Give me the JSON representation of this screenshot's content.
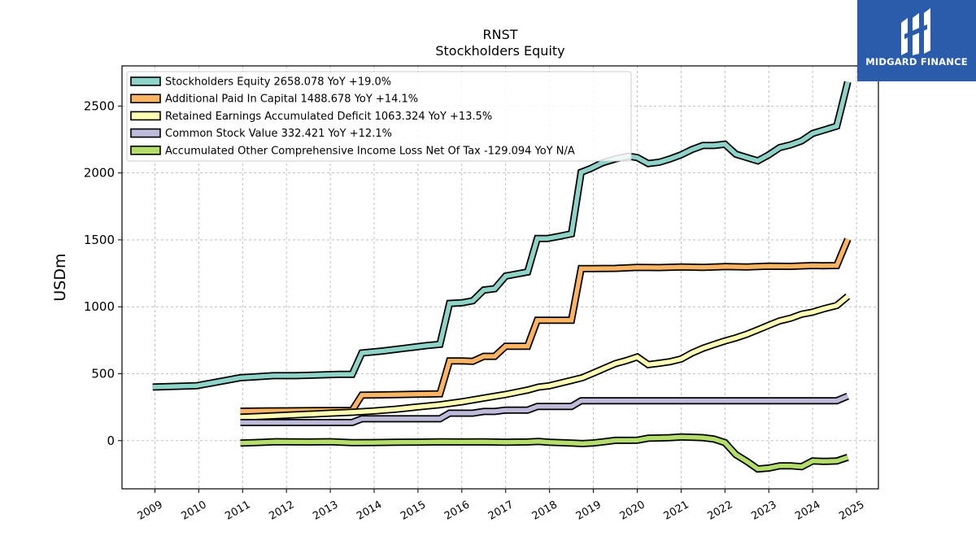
{
  "chart_data": {
    "type": "line",
    "title": "RNST",
    "subtitle": "Stockholders  Equity",
    "ylabel": "USDm",
    "xlabel": "",
    "ylim": [
      -360,
      2800
    ],
    "xlim": [
      2008.25,
      2025.5
    ],
    "yticks": [
      0,
      500,
      1000,
      1500,
      2000,
      2500
    ],
    "xticks": [
      "2009",
      "2010",
      "2011",
      "2012",
      "2013",
      "2014",
      "2015",
      "2016",
      "2017",
      "2018",
      "2019",
      "2020",
      "2021",
      "2022",
      "2023",
      "2024",
      "2025"
    ],
    "grid": true,
    "legend_position": "top-left",
    "series": [
      {
        "name": "Stockholders Equity  2658.078 YoY +19.0%",
        "color": "#8dd3c7",
        "points": [
          [
            2008.95,
            400
          ],
          [
            2009.95,
            410
          ],
          [
            2010.95,
            470
          ],
          [
            2011.2,
            475
          ],
          [
            2011.7,
            485
          ],
          [
            2012.2,
            485
          ],
          [
            2012.7,
            490
          ],
          [
            2013.2,
            495
          ],
          [
            2013.5,
            495
          ],
          [
            2013.72,
            655
          ],
          [
            2014.2,
            670
          ],
          [
            2014.7,
            690
          ],
          [
            2015.2,
            710
          ],
          [
            2015.5,
            720
          ],
          [
            2015.72,
            1025
          ],
          [
            2016.0,
            1030
          ],
          [
            2016.25,
            1045
          ],
          [
            2016.5,
            1125
          ],
          [
            2016.75,
            1135
          ],
          [
            2017.0,
            1230
          ],
          [
            2017.25,
            1245
          ],
          [
            2017.5,
            1260
          ],
          [
            2017.72,
            1510
          ],
          [
            2017.95,
            1510
          ],
          [
            2018.2,
            1525
          ],
          [
            2018.5,
            1545
          ],
          [
            2018.72,
            2005
          ],
          [
            2018.95,
            2035
          ],
          [
            2019.2,
            2075
          ],
          [
            2019.5,
            2105
          ],
          [
            2019.8,
            2125
          ],
          [
            2020.0,
            2115
          ],
          [
            2020.25,
            2070
          ],
          [
            2020.5,
            2080
          ],
          [
            2020.75,
            2105
          ],
          [
            2021.0,
            2135
          ],
          [
            2021.25,
            2175
          ],
          [
            2021.5,
            2205
          ],
          [
            2021.75,
            2205
          ],
          [
            2022.0,
            2215
          ],
          [
            2022.25,
            2140
          ],
          [
            2022.5,
            2115
          ],
          [
            2022.75,
            2090
          ],
          [
            2023.0,
            2135
          ],
          [
            2023.25,
            2190
          ],
          [
            2023.5,
            2210
          ],
          [
            2023.75,
            2240
          ],
          [
            2024.0,
            2295
          ],
          [
            2024.25,
            2320
          ],
          [
            2024.55,
            2350
          ],
          [
            2024.8,
            2680
          ]
        ]
      },
      {
        "name": "Additional Paid In Capital  1488.678 YoY +14.1%",
        "color": "#fdb462",
        "points": [
          [
            2010.95,
            220
          ],
          [
            2011.5,
            222
          ],
          [
            2012.0,
            223
          ],
          [
            2012.5,
            224
          ],
          [
            2013.0,
            225
          ],
          [
            2013.5,
            226
          ],
          [
            2013.72,
            340
          ],
          [
            2014.2,
            342
          ],
          [
            2014.7,
            345
          ],
          [
            2015.2,
            348
          ],
          [
            2015.5,
            350
          ],
          [
            2015.72,
            595
          ],
          [
            2016.0,
            595
          ],
          [
            2016.25,
            593
          ],
          [
            2016.5,
            630
          ],
          [
            2016.75,
            630
          ],
          [
            2017.0,
            705
          ],
          [
            2017.25,
            705
          ],
          [
            2017.5,
            705
          ],
          [
            2017.72,
            900
          ],
          [
            2017.95,
            900
          ],
          [
            2018.2,
            900
          ],
          [
            2018.5,
            900
          ],
          [
            2018.72,
            1285
          ],
          [
            2018.95,
            1285
          ],
          [
            2019.5,
            1287
          ],
          [
            2020.0,
            1295
          ],
          [
            2020.5,
            1293
          ],
          [
            2021.0,
            1297
          ],
          [
            2021.5,
            1295
          ],
          [
            2022.0,
            1300
          ],
          [
            2022.5,
            1298
          ],
          [
            2023.0,
            1303
          ],
          [
            2023.5,
            1302
          ],
          [
            2024.0,
            1308
          ],
          [
            2024.25,
            1307
          ],
          [
            2024.55,
            1308
          ],
          [
            2024.8,
            1505
          ]
        ]
      },
      {
        "name": "Retained Earnings Accumulated Deficit  1063.324 YoY +13.5%",
        "color": "#ffffb3",
        "points": [
          [
            2010.95,
            175
          ],
          [
            2011.5,
            182
          ],
          [
            2012.0,
            190
          ],
          [
            2012.5,
            197
          ],
          [
            2013.0,
            205
          ],
          [
            2013.5,
            212
          ],
          [
            2014.0,
            222
          ],
          [
            2014.5,
            235
          ],
          [
            2015.0,
            252
          ],
          [
            2015.5,
            268
          ],
          [
            2016.0,
            290
          ],
          [
            2016.5,
            318
          ],
          [
            2017.0,
            345
          ],
          [
            2017.5,
            378
          ],
          [
            2017.75,
            400
          ],
          [
            2018.0,
            410
          ],
          [
            2018.5,
            450
          ],
          [
            2018.75,
            470
          ],
          [
            2019.0,
            505
          ],
          [
            2019.25,
            540
          ],
          [
            2019.5,
            575
          ],
          [
            2019.75,
            598
          ],
          [
            2020.0,
            625
          ],
          [
            2020.25,
            568
          ],
          [
            2020.5,
            578
          ],
          [
            2020.75,
            590
          ],
          [
            2021.0,
            610
          ],
          [
            2021.25,
            655
          ],
          [
            2021.5,
            690
          ],
          [
            2021.75,
            718
          ],
          [
            2022.0,
            745
          ],
          [
            2022.25,
            768
          ],
          [
            2022.5,
            795
          ],
          [
            2022.75,
            828
          ],
          [
            2023.0,
            862
          ],
          [
            2023.25,
            895
          ],
          [
            2023.5,
            915
          ],
          [
            2023.75,
            945
          ],
          [
            2024.0,
            960
          ],
          [
            2024.25,
            985
          ],
          [
            2024.55,
            1010
          ],
          [
            2024.8,
            1078
          ]
        ]
      },
      {
        "name": "Common Stock Value  332.421 YoY +12.1%",
        "color": "#bebada",
        "points": [
          [
            2010.95,
            135
          ],
          [
            2011.5,
            135
          ],
          [
            2012.0,
            135
          ],
          [
            2012.5,
            135
          ],
          [
            2013.0,
            135
          ],
          [
            2013.5,
            135
          ],
          [
            2013.72,
            163
          ],
          [
            2014.2,
            163
          ],
          [
            2014.7,
            163
          ],
          [
            2015.2,
            163
          ],
          [
            2015.5,
            163
          ],
          [
            2015.72,
            205
          ],
          [
            2016.0,
            205
          ],
          [
            2016.25,
            205
          ],
          [
            2016.5,
            218
          ],
          [
            2016.75,
            218
          ],
          [
            2017.0,
            228
          ],
          [
            2017.25,
            228
          ],
          [
            2017.5,
            228
          ],
          [
            2017.72,
            255
          ],
          [
            2017.95,
            255
          ],
          [
            2018.2,
            255
          ],
          [
            2018.5,
            255
          ],
          [
            2018.72,
            298
          ],
          [
            2019.0,
            298
          ],
          [
            2019.5,
            298
          ],
          [
            2020.0,
            298
          ],
          [
            2020.5,
            298
          ],
          [
            2021.0,
            298
          ],
          [
            2021.5,
            298
          ],
          [
            2022.0,
            298
          ],
          [
            2022.5,
            298
          ],
          [
            2023.0,
            298
          ],
          [
            2023.5,
            298
          ],
          [
            2024.0,
            298
          ],
          [
            2024.25,
            298
          ],
          [
            2024.55,
            298
          ],
          [
            2024.8,
            332
          ]
        ]
      },
      {
        "name": "Accumulated Other Comprehensive Income Loss Net Of Tax  -129.094 YoY N/A",
        "color": "#b3de69",
        "points": [
          [
            2010.95,
            -18
          ],
          [
            2011.25,
            -15
          ],
          [
            2011.5,
            -12
          ],
          [
            2011.75,
            -8
          ],
          [
            2012.0,
            -9
          ],
          [
            2012.5,
            -10
          ],
          [
            2013.0,
            -8
          ],
          [
            2013.5,
            -15
          ],
          [
            2014.0,
            -14
          ],
          [
            2014.5,
            -12
          ],
          [
            2015.0,
            -11
          ],
          [
            2015.5,
            -9
          ],
          [
            2016.0,
            -10
          ],
          [
            2016.5,
            -9
          ],
          [
            2017.0,
            -12
          ],
          [
            2017.5,
            -10
          ],
          [
            2017.75,
            -6
          ],
          [
            2018.0,
            -12
          ],
          [
            2018.5,
            -18
          ],
          [
            2018.75,
            -22
          ],
          [
            2019.0,
            -17
          ],
          [
            2019.25,
            -8
          ],
          [
            2019.5,
            2
          ],
          [
            2019.75,
            2
          ],
          [
            2020.0,
            3
          ],
          [
            2020.25,
            18
          ],
          [
            2020.5,
            20
          ],
          [
            2020.75,
            22
          ],
          [
            2021.0,
            28
          ],
          [
            2021.25,
            25
          ],
          [
            2021.5,
            22
          ],
          [
            2021.75,
            12
          ],
          [
            2022.0,
            -15
          ],
          [
            2022.25,
            -105
          ],
          [
            2022.5,
            -155
          ],
          [
            2022.75,
            -212
          ],
          [
            2023.0,
            -205
          ],
          [
            2023.25,
            -188
          ],
          [
            2023.5,
            -188
          ],
          [
            2023.75,
            -195
          ],
          [
            2024.0,
            -152
          ],
          [
            2024.25,
            -155
          ],
          [
            2024.55,
            -152
          ],
          [
            2024.8,
            -125
          ]
        ]
      }
    ]
  },
  "logo": {
    "text": "MIDGARD FINANCE"
  }
}
